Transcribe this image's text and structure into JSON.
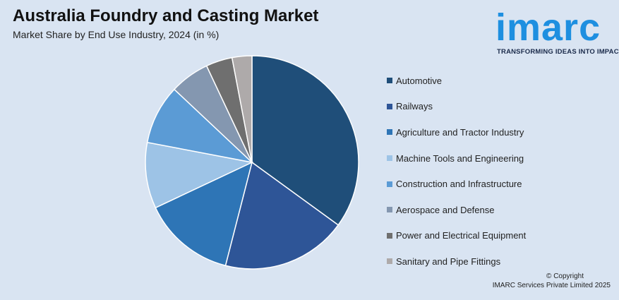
{
  "header": {
    "title": "Australia Foundry and Casting Market",
    "subtitle": "Market Share by End Use Industry, 2024 (in %)"
  },
  "logo": {
    "word": "imarc",
    "tagline": "TRANSFORMING IDEAS INTO IMPACT",
    "color": "#1e8fe0"
  },
  "chart_data": {
    "type": "pie",
    "title": "Australia Foundry and Casting Market",
    "subtitle": "Market Share by End Use Industry, 2024 (in %)",
    "legend_position": "right",
    "slices": [
      {
        "label": "Automotive",
        "value": 35,
        "color": "#1f4e79"
      },
      {
        "label": "Railways",
        "value": 19,
        "color": "#2e5597"
      },
      {
        "label": "Agriculture and Tractor Industry",
        "value": 14,
        "color": "#2e75b6"
      },
      {
        "label": "Machine Tools and Engineering",
        "value": 10,
        "color": "#9dc3e6"
      },
      {
        "label": "Construction and Infrastructure",
        "value": 9,
        "color": "#5b9bd5"
      },
      {
        "label": "Aerospace and Defense",
        "value": 6,
        "color": "#8497b0"
      },
      {
        "label": "Power and Electrical Equipment",
        "value": 4,
        "color": "#6f6f6f"
      },
      {
        "label": "Sanitary and Pipe Fittings",
        "value": 3,
        "color": "#aeaaaa"
      }
    ]
  },
  "footer": {
    "copyright_line1": "© Copyright",
    "copyright_line2": "IMARC Services Private Limited 2025"
  }
}
